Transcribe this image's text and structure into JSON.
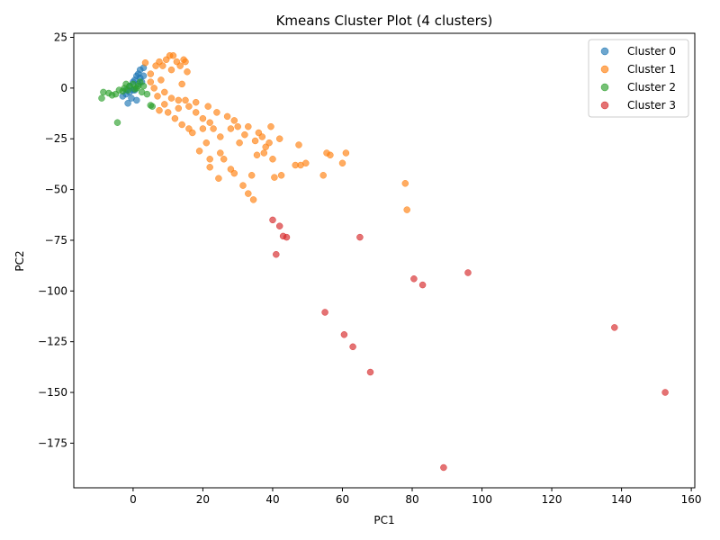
{
  "chart_data": {
    "type": "scatter",
    "title": "Kmeans Cluster Plot (4 clusters)",
    "xlabel": "PC1",
    "ylabel": "PC2",
    "xlim": [
      -17,
      161
    ],
    "ylim": [
      -197,
      27
    ],
    "xticks": [
      0,
      20,
      40,
      60,
      80,
      100,
      120,
      140,
      160
    ],
    "yticks": [
      25,
      0,
      -25,
      -50,
      -75,
      -100,
      -125,
      -150,
      -175
    ],
    "legend_position": "upper right",
    "grid": false,
    "series": [
      {
        "name": "Cluster 0",
        "color": "#1f77b4",
        "points": [
          [
            -3,
            -4
          ],
          [
            -2,
            -3
          ],
          [
            -1.5,
            -7.5
          ],
          [
            -1,
            -2
          ],
          [
            -0.5,
            -5
          ],
          [
            0,
            -1
          ],
          [
            0,
            3
          ],
          [
            0.5,
            4
          ],
          [
            1,
            6
          ],
          [
            1,
            -6
          ],
          [
            1.5,
            2
          ],
          [
            1.5,
            7
          ],
          [
            2,
            5
          ],
          [
            2,
            9
          ],
          [
            2.5,
            3
          ],
          [
            3,
            10
          ],
          [
            3,
            6
          ],
          [
            0.5,
            -1
          ],
          [
            -1,
            1
          ],
          [
            -2,
            -1
          ]
        ]
      },
      {
        "name": "Cluster 1",
        "color": "#ff7f0e",
        "points": [
          [
            3.5,
            12.5
          ],
          [
            5,
            7
          ],
          [
            6.5,
            11
          ],
          [
            7.5,
            13
          ],
          [
            8.5,
            11
          ],
          [
            9.5,
            14
          ],
          [
            10.5,
            16
          ],
          [
            11.5,
            16
          ],
          [
            12.5,
            13
          ],
          [
            13.5,
            11
          ],
          [
            14.5,
            14
          ],
          [
            15,
            13
          ],
          [
            15.5,
            8
          ],
          [
            14,
            2
          ],
          [
            8,
            4
          ],
          [
            6,
            0
          ],
          [
            7,
            -4
          ],
          [
            7.5,
            -11
          ],
          [
            9,
            -8
          ],
          [
            10,
            -12
          ],
          [
            11,
            -5
          ],
          [
            12,
            -15
          ],
          [
            13,
            -10
          ],
          [
            14,
            -18
          ],
          [
            15,
            -6
          ],
          [
            16,
            -20
          ],
          [
            17,
            -22
          ],
          [
            18,
            -12
          ],
          [
            19,
            -31
          ],
          [
            20,
            -15
          ],
          [
            21,
            -27
          ],
          [
            22,
            -17
          ],
          [
            22,
            -35
          ],
          [
            22,
            -39
          ],
          [
            23,
            -20
          ],
          [
            24,
            -12
          ],
          [
            24.5,
            -44.5
          ],
          [
            25,
            -32
          ],
          [
            26,
            -35
          ],
          [
            25,
            -24
          ],
          [
            27,
            -14
          ],
          [
            28,
            -20
          ],
          [
            28,
            -40
          ],
          [
            29,
            -42
          ],
          [
            29,
            -16
          ],
          [
            30,
            -19
          ],
          [
            30.5,
            -27
          ],
          [
            31.5,
            -48
          ],
          [
            32,
            -23
          ],
          [
            33,
            -52
          ],
          [
            33,
            -19
          ],
          [
            34,
            -43
          ],
          [
            34.5,
            -55
          ],
          [
            35,
            -26
          ],
          [
            35.5,
            -33
          ],
          [
            36,
            -22
          ],
          [
            37,
            -24
          ],
          [
            37.5,
            -32
          ],
          [
            38,
            -29
          ],
          [
            39,
            -27
          ],
          [
            39.5,
            -19
          ],
          [
            40,
            -35
          ],
          [
            40.5,
            -44
          ],
          [
            42,
            -25
          ],
          [
            42.5,
            -43
          ],
          [
            46.5,
            -38
          ],
          [
            47.5,
            -28
          ],
          [
            48,
            -38
          ],
          [
            49.5,
            -37
          ],
          [
            54.5,
            -43
          ],
          [
            55.5,
            -32
          ],
          [
            56.5,
            -33
          ],
          [
            60,
            -37
          ],
          [
            61,
            -32
          ],
          [
            78,
            -47
          ],
          [
            78.5,
            -60
          ],
          [
            5,
            3
          ],
          [
            9,
            -2
          ],
          [
            11,
            9
          ],
          [
            13,
            -6
          ],
          [
            16,
            -9
          ],
          [
            18,
            -7
          ],
          [
            20,
            -20
          ],
          [
            21.5,
            -9
          ]
        ]
      },
      {
        "name": "Cluster 2",
        "color": "#2ca02c",
        "points": [
          [
            -9,
            -5
          ],
          [
            -8.5,
            -2
          ],
          [
            -7,
            -2.5
          ],
          [
            -6,
            -3.5
          ],
          [
            -5,
            -3
          ],
          [
            -4.5,
            -17
          ],
          [
            -4,
            -1
          ],
          [
            -3,
            -1.5
          ],
          [
            -2.5,
            0
          ],
          [
            -2,
            2
          ],
          [
            -1.5,
            -1
          ],
          [
            -1,
            1
          ],
          [
            0,
            2
          ],
          [
            0.5,
            -0.5
          ],
          [
            1,
            0
          ],
          [
            1.5,
            1
          ],
          [
            2,
            3
          ],
          [
            2.5,
            -2
          ],
          [
            3,
            1
          ],
          [
            4,
            -3
          ],
          [
            5,
            -8.5
          ],
          [
            5.5,
            -9
          ]
        ]
      },
      {
        "name": "Cluster 3",
        "color": "#d62728",
        "points": [
          [
            40,
            -65
          ],
          [
            41,
            -82
          ],
          [
            42,
            -68
          ],
          [
            43,
            -73
          ],
          [
            44,
            -73.5
          ],
          [
            55,
            -110.5
          ],
          [
            60.5,
            -121.5
          ],
          [
            63,
            -127.5
          ],
          [
            65,
            -73.5
          ],
          [
            68,
            -140
          ],
          [
            80.5,
            -94
          ],
          [
            83,
            -97
          ],
          [
            89,
            -187
          ],
          [
            96,
            -91
          ],
          [
            138,
            -118
          ],
          [
            152.5,
            -150
          ]
        ]
      }
    ]
  }
}
